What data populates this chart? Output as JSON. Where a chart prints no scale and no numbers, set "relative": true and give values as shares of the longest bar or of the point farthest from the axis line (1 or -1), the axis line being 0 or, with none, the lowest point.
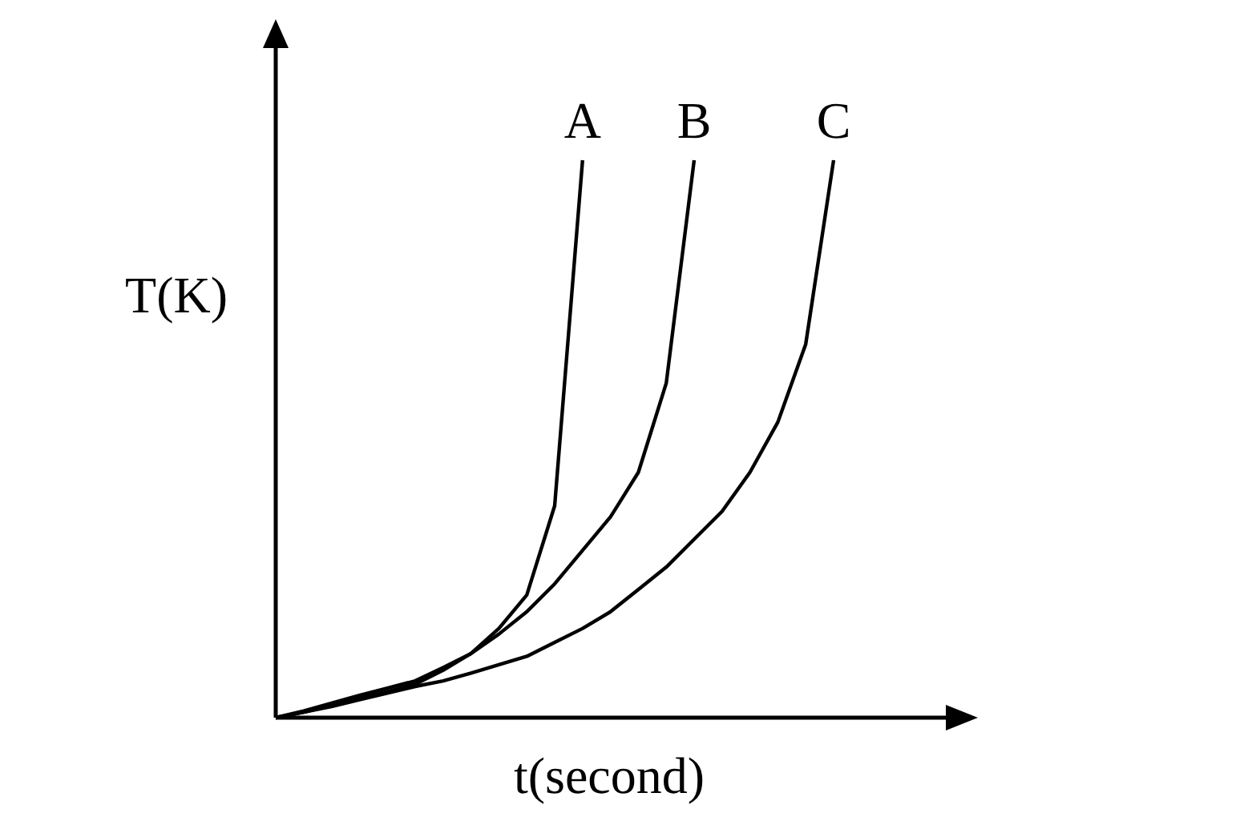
{
  "chart_data": {
    "type": "line",
    "relative": true,
    "xlabel": "t(second)",
    "ylabel": "T(K)",
    "categories": [
      null,
      null,
      null,
      null,
      null,
      null,
      null,
      null,
      null,
      null,
      null,
      null,
      null,
      null,
      null,
      null,
      null,
      null,
      null,
      null,
      null
    ],
    "series": [
      {
        "name": "A",
        "color": "#000000",
        "values": [
          0,
          0.01,
          0.022,
          0.035,
          0.047,
          0.06,
          0.085,
          0.115,
          0.16,
          0.22,
          0.38,
          1,
          null,
          null,
          null,
          null,
          null,
          null,
          null,
          null,
          null
        ]
      },
      {
        "name": "B",
        "color": "#000000",
        "values": [
          0,
          0.012,
          0.026,
          0.04,
          0.053,
          0.066,
          0.09,
          0.115,
          0.15,
          0.19,
          0.24,
          0.3,
          0.36,
          0.44,
          0.6,
          1,
          null,
          null,
          null,
          null,
          null
        ]
      },
      {
        "name": "C",
        "color": "#000000",
        "values": [
          0,
          0.01,
          0.02,
          0.032,
          0.044,
          0.056,
          0.066,
          0.08,
          0.095,
          0.11,
          0.135,
          0.16,
          0.19,
          0.23,
          0.27,
          0.32,
          0.37,
          0.44,
          0.53,
          0.67,
          1
        ]
      }
    ]
  }
}
